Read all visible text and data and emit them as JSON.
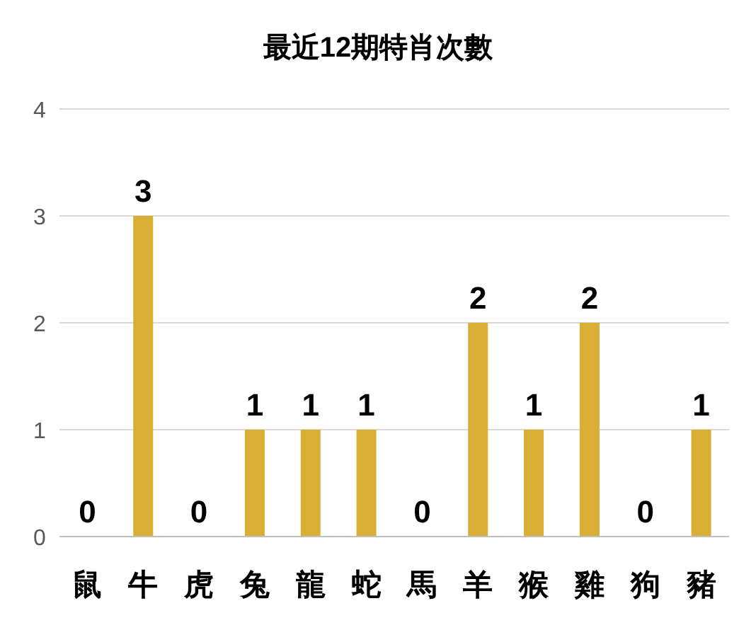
{
  "chart_data": {
    "type": "bar",
    "title": "最近12期特肖次數",
    "categories": [
      "鼠",
      "牛",
      "虎",
      "兔",
      "龍",
      "蛇",
      "馬",
      "羊",
      "猴",
      "雞",
      "狗",
      "豬"
    ],
    "values": [
      0,
      3,
      0,
      1,
      1,
      1,
      0,
      2,
      1,
      2,
      0,
      1
    ],
    "color": "#d9ae34",
    "ylim": [
      0,
      4
    ],
    "yticks": [
      0,
      1,
      2,
      3,
      4
    ],
    "grid": "y",
    "data_labels": true
  }
}
